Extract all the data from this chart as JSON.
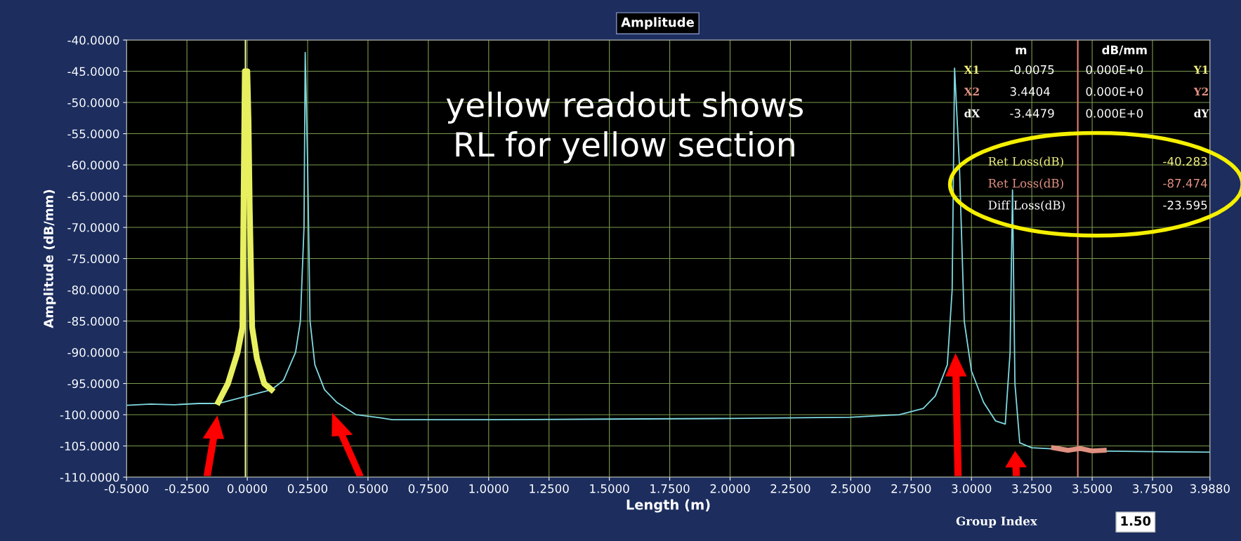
{
  "chart_data": {
    "type": "line",
    "title": "Amplitude",
    "xlabel": "Length (m)",
    "ylabel": "Amplitude (dB/mm)",
    "xlim": [
      -0.5,
      3.988
    ],
    "ylim": [
      -110,
      -40
    ],
    "xticks": [
      {
        "value": -0.5,
        "label": "-0.5000"
      },
      {
        "value": -0.25,
        "label": "-0.2500"
      },
      {
        "value": 0,
        "label": "0.0000"
      },
      {
        "value": 0.25,
        "label": "0.2500"
      },
      {
        "value": 0.5,
        "label": "0.5000"
      },
      {
        "value": 0.75,
        "label": "0.7500"
      },
      {
        "value": 1,
        "label": "1.0000"
      },
      {
        "value": 1.25,
        "label": "1.2500"
      },
      {
        "value": 1.5,
        "label": "1.5000"
      },
      {
        "value": 1.75,
        "label": "1.7500"
      },
      {
        "value": 2,
        "label": "2.0000"
      },
      {
        "value": 2.25,
        "label": "2.2500"
      },
      {
        "value": 2.5,
        "label": "2.5000"
      },
      {
        "value": 2.75,
        "label": "2.7500"
      },
      {
        "value": 3,
        "label": "3.0000"
      },
      {
        "value": 3.25,
        "label": "3.2500"
      },
      {
        "value": 3.5,
        "label": "3.5000"
      },
      {
        "value": 3.75,
        "label": "3.7500"
      },
      {
        "value": 3.988,
        "label": "3.9880"
      }
    ],
    "yticks": [
      {
        "value": -40,
        "label": "-40.0000"
      },
      {
        "value": -45,
        "label": "-45.0000"
      },
      {
        "value": -50,
        "label": "-50.0000"
      },
      {
        "value": -55,
        "label": "-55.0000"
      },
      {
        "value": -60,
        "label": "-60.0000"
      },
      {
        "value": -65,
        "label": "-65.0000"
      },
      {
        "value": -70,
        "label": "-70.0000"
      },
      {
        "value": -75,
        "label": "-75.0000"
      },
      {
        "value": -80,
        "label": "-80.0000"
      },
      {
        "value": -85,
        "label": "-85.0000"
      },
      {
        "value": -90,
        "label": "-90.0000"
      },
      {
        "value": -95,
        "label": "-95.0000"
      },
      {
        "value": -100,
        "label": "-100.0000"
      },
      {
        "value": -105,
        "label": "-105.0000"
      },
      {
        "value": -110,
        "label": "-110.0000"
      }
    ],
    "grid": true,
    "legend": false,
    "marker": "none",
    "line_style": "solid",
    "series": [
      {
        "color": "#7fd8e0",
        "x": [
          -0.5,
          -0.4,
          -0.3,
          -0.2,
          -0.12,
          0.1,
          0.15,
          0.2,
          0.22,
          0.235,
          0.24,
          0.25,
          0.26,
          0.28,
          0.32,
          0.37,
          0.45,
          0.55,
          0.6,
          1.0,
          1.5,
          2.0,
          2.5,
          2.7,
          2.8,
          2.85,
          2.9,
          2.92,
          2.93,
          2.95,
          2.97,
          3.0,
          3.05,
          3.1,
          3.14,
          3.16,
          3.17,
          3.18,
          3.2,
          3.25,
          3.5,
          3.75,
          3.988
        ],
        "values": [
          -98.5,
          -98.3,
          -98.4,
          -98.2,
          -98.2,
          -96,
          -94.5,
          -90,
          -85,
          -70,
          -42,
          -60,
          -85,
          -92,
          -96,
          -98,
          -100,
          -100.5,
          -100.8,
          -100.8,
          -100.7,
          -100.6,
          -100.4,
          -100,
          -99,
          -97,
          -92,
          -80,
          -44.5,
          -60,
          -85,
          -93,
          -98,
          -101,
          -101.5,
          -90,
          -64,
          -95,
          -104.5,
          -105.3,
          -105.8,
          -105.9,
          -106
        ]
      },
      {
        "color": "#e8f060",
        "x": [
          -0.12,
          -0.08,
          -0.04,
          -0.02,
          -0.015,
          -0.01,
          0.0,
          0.005,
          0.01,
          0.02,
          0.04,
          0.07,
          0.1
        ],
        "values": [
          -98,
          -95,
          -90,
          -86,
          -65,
          -45,
          -45,
          -53,
          -67,
          -86,
          -91,
          -95,
          -96
        ]
      },
      {
        "color": "#e09080",
        "x": [
          3.34,
          3.4,
          3.45,
          3.5,
          3.55
        ],
        "values": [
          -105.3,
          -105.7,
          -105.4,
          -105.8,
          -105.7
        ]
      }
    ],
    "ref_lines": [
      {
        "axis": "x",
        "value": -0.0075,
        "color": "#f0f0a0"
      },
      {
        "axis": "x",
        "value": 3.4404,
        "color": "#e08070"
      }
    ],
    "annotations": [
      "yellow readout shows RL for yellow section",
      "m",
      "dB/mm",
      "X1",
      "-0.0075",
      "0.000E+0",
      "Y1",
      "X2",
      "3.4404",
      "0.000E+0",
      "Y2",
      "dX",
      "-3.4479",
      "0.000E+0",
      "dY",
      "Ret Loss(dB)",
      "-40.283",
      "Ret Loss(dB)",
      "-87.474",
      "Diff Loss(dB)",
      "-23.595",
      "Group Index",
      "1.50"
    ]
  }
}
